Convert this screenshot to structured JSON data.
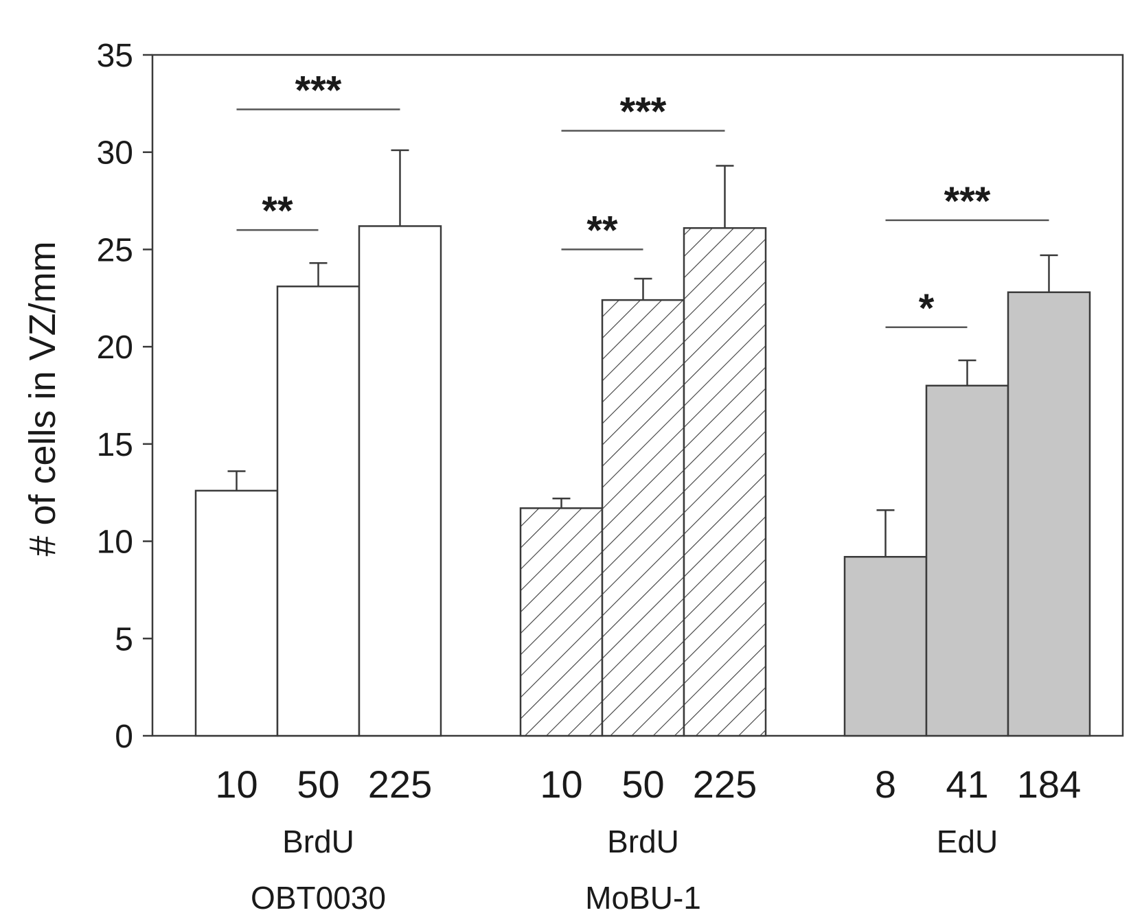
{
  "chart_data": {
    "type": "bar",
    "title": "",
    "xlabel": "",
    "ylabel": "# of cells in VZ/mm",
    "ylim": [
      0,
      35
    ],
    "yticks": [
      0,
      5,
      10,
      15,
      20,
      25,
      30,
      35
    ],
    "grid": false,
    "groups": [
      {
        "label_lines": [
          "BrdU",
          "OBT0030"
        ],
        "fill": "#ffffff",
        "pattern": "none",
        "bars": [
          {
            "category": "10",
            "value": 12.6,
            "error": 1.0
          },
          {
            "category": "50",
            "value": 23.1,
            "error": 1.2
          },
          {
            "category": "225",
            "value": 26.2,
            "error": 3.9
          }
        ],
        "significance": [
          {
            "from": 0,
            "to": 1,
            "label": "**",
            "y": 26.0
          },
          {
            "from": 0,
            "to": 2,
            "label": "***",
            "y": 32.2
          }
        ]
      },
      {
        "label_lines": [
          "BrdU",
          "MoBU-1"
        ],
        "fill": "#ffffff",
        "pattern": "hatch",
        "bars": [
          {
            "category": "10",
            "value": 11.7,
            "error": 0.5
          },
          {
            "category": "50",
            "value": 22.4,
            "error": 1.1
          },
          {
            "category": "225",
            "value": 26.1,
            "error": 3.2
          }
        ],
        "significance": [
          {
            "from": 0,
            "to": 1,
            "label": "**",
            "y": 25.0
          },
          {
            "from": 0,
            "to": 2,
            "label": "***",
            "y": 31.1
          }
        ]
      },
      {
        "label_lines": [
          "EdU"
        ],
        "fill": "#c6c6c6",
        "pattern": "none",
        "bars": [
          {
            "category": "8",
            "value": 9.2,
            "error": 2.4
          },
          {
            "category": "41",
            "value": 18.0,
            "error": 1.3
          },
          {
            "category": "184",
            "value": 22.8,
            "error": 1.9
          }
        ],
        "significance": [
          {
            "from": 0,
            "to": 1,
            "label": "*",
            "y": 21.0
          },
          {
            "from": 0,
            "to": 2,
            "label": "***",
            "y": 26.5
          }
        ]
      }
    ],
    "colors": {
      "axis": "#3a3a3a",
      "bar_stroke": "#3a3a3a",
      "edu_fill": "#c6c6c6",
      "hatch": "#3a3a3a"
    }
  }
}
